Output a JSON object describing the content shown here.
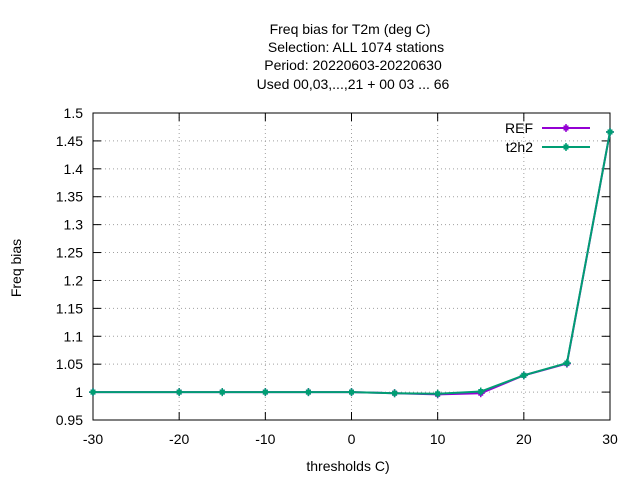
{
  "chart_data": {
    "type": "line",
    "title_lines": [
      "Freq bias  for T2m (deg C)",
      "Selection: ALL   1074 stations",
      "Period: 20220603-20220630",
      "Used  00,03,...,21  + 00 03 ... 66"
    ],
    "xlabel": "thresholds C)",
    "ylabel": "Freq bias",
    "xlim": [
      -30,
      30
    ],
    "ylim": [
      0.95,
      1.5
    ],
    "xticks": [
      -30,
      -20,
      -10,
      0,
      10,
      20,
      30
    ],
    "xtick_labels": [
      "-30",
      "-20",
      "-10",
      "0",
      "10",
      "20",
      "30"
    ],
    "yticks": [
      0.95,
      1,
      1.05,
      1.1,
      1.15,
      1.2,
      1.25,
      1.3,
      1.35,
      1.4,
      1.45,
      1.5
    ],
    "ytick_labels": [
      "0.95",
      "1",
      "1.05",
      "1.1",
      "1.15",
      "1.2",
      "1.25",
      "1.3",
      "1.35",
      "1.4",
      "1.45",
      "1.5"
    ],
    "grid": true,
    "legend_position": "top-right",
    "x": [
      -30,
      -20,
      -15,
      -10,
      -5,
      0,
      5,
      10,
      15,
      20,
      25,
      30
    ],
    "series": [
      {
        "name": "REF",
        "color": "#9400d3",
        "values": [
          1.0,
          1.0,
          1.0,
          1.0,
          1.0,
          1.0,
          0.998,
          0.996,
          0.998,
          1.03,
          1.051,
          1.466
        ]
      },
      {
        "name": "t2h2",
        "color": "#009e73",
        "values": [
          1.0,
          1.0,
          1.0,
          1.0,
          1.0,
          1.0,
          0.998,
          0.997,
          1.001,
          1.03,
          1.052,
          1.466
        ]
      }
    ]
  }
}
